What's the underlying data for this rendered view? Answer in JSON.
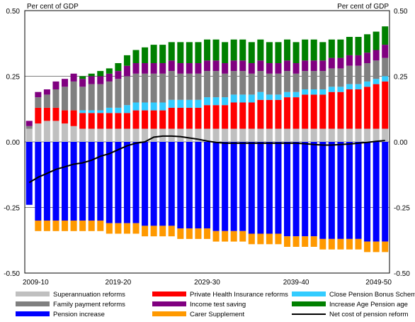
{
  "chart_data": {
    "type": "bar",
    "stacked": true,
    "unit_left": "Per cent of GDP",
    "unit_right": "Per cent of GDP",
    "ylim": [
      -0.5,
      0.5
    ],
    "y_ticks": [
      0.5,
      0.25,
      0.0,
      -0.25,
      -0.5
    ],
    "y_tick_labels": [
      "0.50",
      "0.25",
      "0.00",
      "-0.25",
      "-0.50"
    ],
    "x_start": 2009,
    "x_end": 2049,
    "x_tick_labels": [
      {
        "year": 2009,
        "label": "2009-10"
      },
      {
        "year": 2019,
        "label": "2019-20"
      },
      {
        "year": 2029,
        "label": "2029-30"
      },
      {
        "year": 2039,
        "label": "2039-40"
      },
      {
        "year": 2049,
        "label": "2049-50"
      }
    ],
    "grid": true,
    "legend_position": "bottom",
    "series": [
      {
        "name": "Superannuation reforms",
        "color": "#c0c0c0",
        "type": "bar",
        "values": [
          0.05,
          0.07,
          0.08,
          0.08,
          0.07,
          0.06,
          0.05,
          0.05,
          0.05,
          0.05,
          0.05,
          0.05,
          0.05,
          0.05,
          0.05,
          0.05,
          0.05,
          0.05,
          0.05,
          0.05,
          0.05,
          0.05,
          0.05,
          0.05,
          0.05,
          0.05,
          0.05,
          0.05,
          0.05,
          0.05,
          0.05,
          0.05,
          0.05,
          0.05,
          0.05,
          0.05,
          0.05,
          0.05,
          0.05,
          0.05,
          0.05
        ]
      },
      {
        "name": "Private Health Insurance reforms",
        "color": "#ff0000",
        "type": "bar",
        "values": [
          0.0,
          0.06,
          0.05,
          0.05,
          0.05,
          0.06,
          0.06,
          0.06,
          0.06,
          0.06,
          0.06,
          0.06,
          0.07,
          0.07,
          0.07,
          0.07,
          0.08,
          0.08,
          0.08,
          0.08,
          0.09,
          0.09,
          0.09,
          0.1,
          0.1,
          0.1,
          0.11,
          0.11,
          0.11,
          0.12,
          0.12,
          0.13,
          0.13,
          0.13,
          0.14,
          0.14,
          0.15,
          0.15,
          0.16,
          0.17,
          0.18
        ]
      },
      {
        "name": "Close Pension Bonus Scheme",
        "color": "#33ccff",
        "type": "bar",
        "values": [
          0.0,
          0.0,
          0.0,
          0.0,
          0.0,
          0.0,
          0.01,
          0.01,
          0.01,
          0.02,
          0.02,
          0.03,
          0.03,
          0.03,
          0.03,
          0.03,
          0.03,
          0.03,
          0.03,
          0.03,
          0.03,
          0.03,
          0.03,
          0.03,
          0.03,
          0.03,
          0.03,
          0.02,
          0.02,
          0.02,
          0.02,
          0.02,
          0.02,
          0.02,
          0.02,
          0.02,
          0.02,
          0.02,
          0.02,
          0.02,
          0.02
        ]
      },
      {
        "name": "Family payment reforms",
        "color": "#808080",
        "type": "bar",
        "values": [
          0.01,
          0.04,
          0.05,
          0.07,
          0.09,
          0.11,
          0.09,
          0.1,
          0.1,
          0.1,
          0.11,
          0.11,
          0.11,
          0.11,
          0.11,
          0.11,
          0.11,
          0.1,
          0.1,
          0.1,
          0.1,
          0.1,
          0.09,
          0.09,
          0.09,
          0.08,
          0.08,
          0.08,
          0.08,
          0.08,
          0.07,
          0.07,
          0.07,
          0.07,
          0.07,
          0.07,
          0.07,
          0.07,
          0.07,
          0.07,
          0.07
        ]
      },
      {
        "name": "Income test saving",
        "color": "#800080",
        "type": "bar",
        "values": [
          0.02,
          0.02,
          0.02,
          0.03,
          0.03,
          0.03,
          0.03,
          0.03,
          0.03,
          0.03,
          0.03,
          0.04,
          0.04,
          0.04,
          0.04,
          0.04,
          0.04,
          0.04,
          0.04,
          0.04,
          0.04,
          0.04,
          0.04,
          0.04,
          0.04,
          0.04,
          0.04,
          0.04,
          0.04,
          0.04,
          0.04,
          0.04,
          0.04,
          0.04,
          0.04,
          0.04,
          0.04,
          0.04,
          0.04,
          0.04,
          0.05
        ]
      },
      {
        "name": "Increase Age Pension age",
        "color": "#008000",
        "type": "bar",
        "values": [
          0.0,
          0.0,
          0.0,
          0.0,
          0.0,
          0.0,
          0.01,
          0.01,
          0.02,
          0.02,
          0.03,
          0.04,
          0.05,
          0.06,
          0.07,
          0.07,
          0.07,
          0.08,
          0.08,
          0.08,
          0.08,
          0.08,
          0.08,
          0.08,
          0.08,
          0.08,
          0.08,
          0.08,
          0.08,
          0.08,
          0.08,
          0.08,
          0.08,
          0.07,
          0.07,
          0.07,
          0.07,
          0.07,
          0.07,
          0.07,
          0.07
        ]
      },
      {
        "name": "Pension increase",
        "color": "#0000ff",
        "type": "bar",
        "values": [
          -0.24,
          -0.3,
          -0.3,
          -0.3,
          -0.3,
          -0.3,
          -0.3,
          -0.3,
          -0.3,
          -0.31,
          -0.31,
          -0.31,
          -0.31,
          -0.32,
          -0.32,
          -0.32,
          -0.32,
          -0.33,
          -0.33,
          -0.33,
          -0.33,
          -0.34,
          -0.34,
          -0.34,
          -0.34,
          -0.35,
          -0.35,
          -0.35,
          -0.35,
          -0.36,
          -0.36,
          -0.36,
          -0.36,
          -0.37,
          -0.37,
          -0.37,
          -0.37,
          -0.37,
          -0.38,
          -0.38,
          -0.38
        ]
      },
      {
        "name": "Carer Supplement",
        "color": "#ff9900",
        "type": "bar",
        "values": [
          0.0,
          -0.04,
          -0.04,
          -0.04,
          -0.04,
          -0.04,
          -0.04,
          -0.04,
          -0.04,
          -0.04,
          -0.04,
          -0.04,
          -0.04,
          -0.04,
          -0.04,
          -0.04,
          -0.04,
          -0.04,
          -0.04,
          -0.04,
          -0.04,
          -0.04,
          -0.04,
          -0.04,
          -0.04,
          -0.04,
          -0.04,
          -0.04,
          -0.04,
          -0.04,
          -0.04,
          -0.04,
          -0.04,
          -0.04,
          -0.04,
          -0.04,
          -0.04,
          -0.04,
          -0.04,
          -0.04,
          -0.04
        ]
      },
      {
        "name": "Net cost of pension reform",
        "color": "#000000",
        "type": "line",
        "values": [
          -0.155,
          -0.135,
          -0.12,
          -0.105,
          -0.095,
          -0.085,
          -0.08,
          -0.07,
          -0.055,
          -0.045,
          -0.03,
          -0.015,
          -0.005,
          0.0,
          0.018,
          0.022,
          0.022,
          0.02,
          0.015,
          0.01,
          0.003,
          -0.002,
          -0.005,
          -0.005,
          -0.005,
          -0.005,
          -0.005,
          -0.005,
          -0.005,
          -0.005,
          -0.005,
          -0.007,
          -0.01,
          -0.012,
          -0.012,
          -0.01,
          -0.008,
          -0.005,
          -0.002,
          0.002,
          0.005
        ]
      }
    ]
  }
}
